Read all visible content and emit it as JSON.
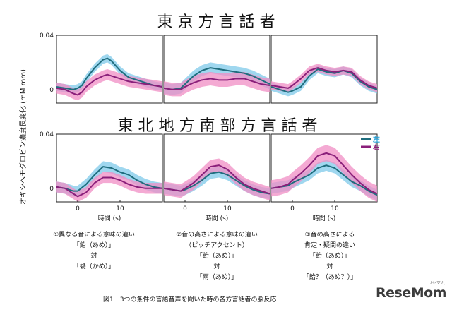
{
  "chart_data": {
    "type": "line",
    "ylabel": "オキシヘモグロビン濃度長変化 (mM mm)",
    "xlabel": "時間 (s)",
    "x_ticks": [
      0,
      10
    ],
    "y_ticks": [
      "0.04",
      "0"
    ],
    "ylim": [
      -0.01,
      0.04
    ],
    "xlim": [
      -5,
      20
    ],
    "legend": {
      "placement": "right",
      "entries": [
        "左",
        "右"
      ]
    },
    "colors": {
      "left_line": "#1f6d7e",
      "left_band": "#7fc9ea",
      "right_line": "#8a1f7a",
      "right_band": "#f08ec4"
    },
    "groups": [
      {
        "title": "東 京 方 言 話 者",
        "panels": [
          0,
          1,
          2
        ]
      },
      {
        "title": "東 北 地 方 南 部 方 言 話 者",
        "panels": [
          3,
          4,
          5
        ]
      }
    ],
    "panels": [
      {
        "id": "tokyo-1",
        "x": [
          -5,
          -3,
          -1,
          0,
          1,
          2,
          4,
          6,
          7,
          8,
          10,
          12,
          14,
          16,
          18,
          20
        ],
        "series": [
          {
            "name": "左",
            "values": [
              0.002,
              0.001,
              0.0,
              0.001,
              0.003,
              0.008,
              0.016,
              0.022,
              0.023,
              0.021,
              0.014,
              0.009,
              0.007,
              0.005,
              0.003,
              0.002
            ],
            "spread": 0.003
          },
          {
            "name": "右",
            "values": [
              0.001,
              0.0,
              -0.003,
              -0.004,
              -0.002,
              0.002,
              0.007,
              0.01,
              0.011,
              0.01,
              0.008,
              0.006,
              0.005,
              0.004,
              0.003,
              0.002
            ],
            "spread": 0.004
          }
        ]
      },
      {
        "id": "tokyo-2",
        "x": [
          -5,
          -3,
          -1,
          0,
          2,
          4,
          6,
          8,
          10,
          12,
          14,
          16,
          18,
          20
        ],
        "series": [
          {
            "name": "左",
            "values": [
              0.001,
              0.0,
              0.001,
              0.004,
              0.01,
              0.014,
              0.016,
              0.015,
              0.014,
              0.013,
              0.012,
              0.01,
              0.007,
              0.004
            ],
            "spread": 0.004
          },
          {
            "name": "右",
            "values": [
              0.001,
              0.0,
              0.0,
              0.002,
              0.005,
              0.007,
              0.008,
              0.007,
              0.007,
              0.008,
              0.008,
              0.006,
              0.004,
              0.003
            ],
            "spread": 0.005
          }
        ]
      },
      {
        "id": "tokyo-3",
        "x": [
          -5,
          -3,
          -1,
          0,
          2,
          4,
          6,
          8,
          10,
          12,
          14,
          16,
          18,
          20
        ],
        "series": [
          {
            "name": "左",
            "values": [
              0.002,
              0.0,
              -0.002,
              -0.001,
              0.002,
              0.01,
              0.015,
              0.013,
              0.012,
              0.014,
              0.012,
              0.006,
              0.002,
              0.0
            ],
            "spread": 0.003
          },
          {
            "name": "右",
            "values": [
              0.003,
              0.002,
              0.001,
              0.003,
              0.008,
              0.014,
              0.016,
              0.014,
              0.013,
              0.014,
              0.013,
              0.007,
              0.003,
              0.001
            ],
            "spread": 0.003
          }
        ]
      },
      {
        "id": "tohoku-1",
        "x": [
          -5,
          -3,
          -1,
          0,
          2,
          4,
          6,
          8,
          10,
          12,
          14,
          16,
          18,
          20
        ],
        "series": [
          {
            "name": "左",
            "values": [
              0.001,
              0.0,
              -0.002,
              -0.002,
              0.003,
              0.01,
              0.016,
              0.015,
              0.012,
              0.01,
              0.006,
              0.003,
              0.001,
              0.0
            ],
            "spread": 0.004
          },
          {
            "name": "右",
            "values": [
              0.001,
              0.0,
              -0.004,
              -0.006,
              -0.003,
              0.004,
              0.008,
              0.008,
              0.006,
              0.003,
              0.001,
              0.0,
              0.0,
              0.0
            ],
            "spread": 0.004
          }
        ]
      },
      {
        "id": "tohoku-2",
        "x": [
          -5,
          -3,
          -1,
          0,
          2,
          4,
          6,
          8,
          10,
          12,
          14,
          16,
          18,
          20
        ],
        "series": [
          {
            "name": "左",
            "values": [
              0.0,
              -0.001,
              -0.002,
              -0.001,
              0.002,
              0.006,
              0.011,
              0.012,
              0.01,
              0.006,
              0.002,
              -0.001,
              -0.003,
              -0.004
            ],
            "spread": 0.004
          },
          {
            "name": "右",
            "values": [
              0.0,
              -0.001,
              -0.002,
              0.0,
              0.004,
              0.01,
              0.016,
              0.017,
              0.014,
              0.008,
              0.003,
              0.0,
              -0.002,
              -0.004
            ],
            "spread": 0.005
          }
        ]
      },
      {
        "id": "tohoku-3",
        "x": [
          -5,
          -3,
          -1,
          0,
          2,
          4,
          6,
          8,
          10,
          12,
          14,
          16,
          18,
          20
        ],
        "series": [
          {
            "name": "左",
            "values": [
              0.0,
              0.001,
              0.002,
              0.004,
              0.007,
              0.01,
              0.015,
              0.017,
              0.015,
              0.01,
              0.005,
              0.002,
              -0.002,
              -0.005
            ],
            "spread": 0.004
          },
          {
            "name": "右",
            "values": [
              0.0,
              0.001,
              0.003,
              0.006,
              0.011,
              0.017,
              0.024,
              0.026,
              0.024,
              0.017,
              0.01,
              0.004,
              -0.001,
              -0.004
            ],
            "spread": 0.006
          }
        ]
      }
    ]
  },
  "conditions": [
    {
      "title": "①異なる音による意味の違い",
      "subtitle": "",
      "word1": "「飴（あめ）」",
      "vs": "対",
      "word2": "「甕（かめ）」"
    },
    {
      "title": "②音の高さによる意味の違い",
      "subtitle": "（ピッチアクセント）",
      "word1": "「飴（あめ）」",
      "vs": "対",
      "word2": "「雨（あめ）」"
    },
    {
      "title": "③音の高さによる",
      "subtitle": "肯定・疑問の違い",
      "word1": "「飴（あめ）」",
      "vs": "対",
      "word2": "「飴？（あめ？）」"
    }
  ],
  "figure_caption": "図1　3つの条件の言語音声を聞いた時の各方言話者の脳反応",
  "logo": {
    "text": "ReseMom",
    "sub": "リセマム"
  }
}
